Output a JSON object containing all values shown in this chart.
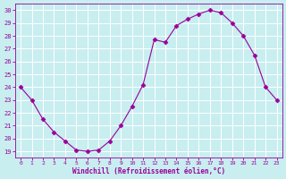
{
  "x": [
    0,
    1,
    2,
    3,
    4,
    5,
    6,
    7,
    8,
    9,
    10,
    11,
    12,
    13,
    14,
    15,
    16,
    17,
    18,
    19,
    20,
    21,
    22,
    23
  ],
  "y": [
    24.0,
    23.0,
    21.5,
    20.5,
    19.8,
    19.1,
    19.0,
    19.1,
    19.8,
    21.0,
    22.5,
    24.2,
    27.7,
    27.5,
    28.8,
    29.3,
    29.7,
    30.0,
    29.8,
    29.0,
    28.0,
    26.5,
    24.0,
    23.0
  ],
  "line_color": "#990099",
  "marker": "D",
  "marker_size": 2.5,
  "bg_color": "#c8eef0",
  "grid_color": "#b0ccd0",
  "xlabel": "Windchill (Refroidissement éolien,°C)",
  "xlabel_color": "#990099",
  "tick_color": "#990099",
  "ylim": [
    18.5,
    30.5
  ],
  "xlim": [
    -0.5,
    23.5
  ],
  "yticks": [
    19,
    20,
    21,
    22,
    23,
    24,
    25,
    26,
    27,
    28,
    29,
    30
  ],
  "xticks": [
    0,
    1,
    2,
    3,
    4,
    5,
    6,
    7,
    8,
    9,
    10,
    11,
    12,
    13,
    14,
    15,
    16,
    17,
    18,
    19,
    20,
    21,
    22,
    23
  ]
}
